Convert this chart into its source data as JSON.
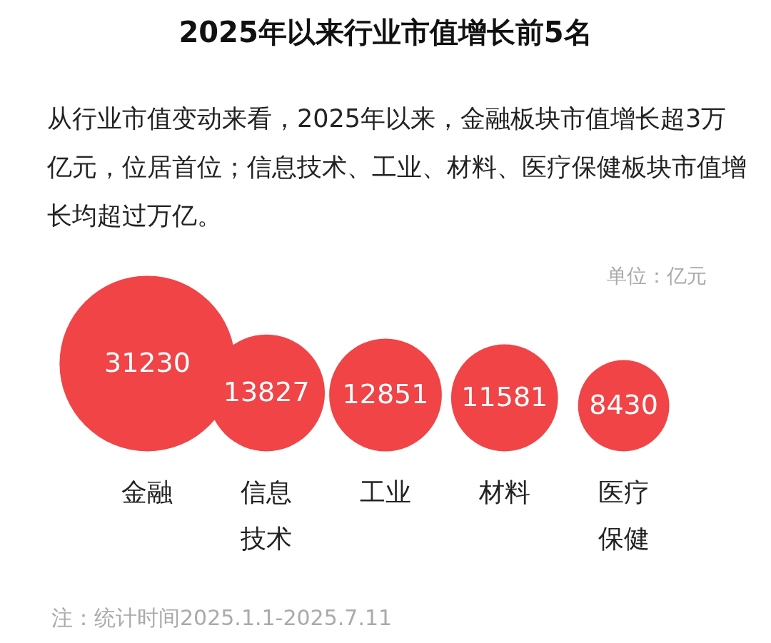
{
  "chart_data": {
    "type": "other",
    "title": "2025年以来行业市值增长前5名",
    "subtitle": "从行业市值变动来看，2025年以来，金融板块市值增长超3万亿元，位居首位；信息技术、工业、材料、医疗保健板块市值增长均超过万亿。",
    "categories": [
      "金融",
      "信息技术",
      "工业",
      "材料",
      "医疗保健"
    ],
    "values": [
      31230,
      13827,
      12851,
      11581,
      8430
    ],
    "color": "#f04447",
    "data_labels": true,
    "annotations": [
      "单位：亿元",
      "注：统计时间2025.1.1-2025.7.11"
    ]
  }
}
